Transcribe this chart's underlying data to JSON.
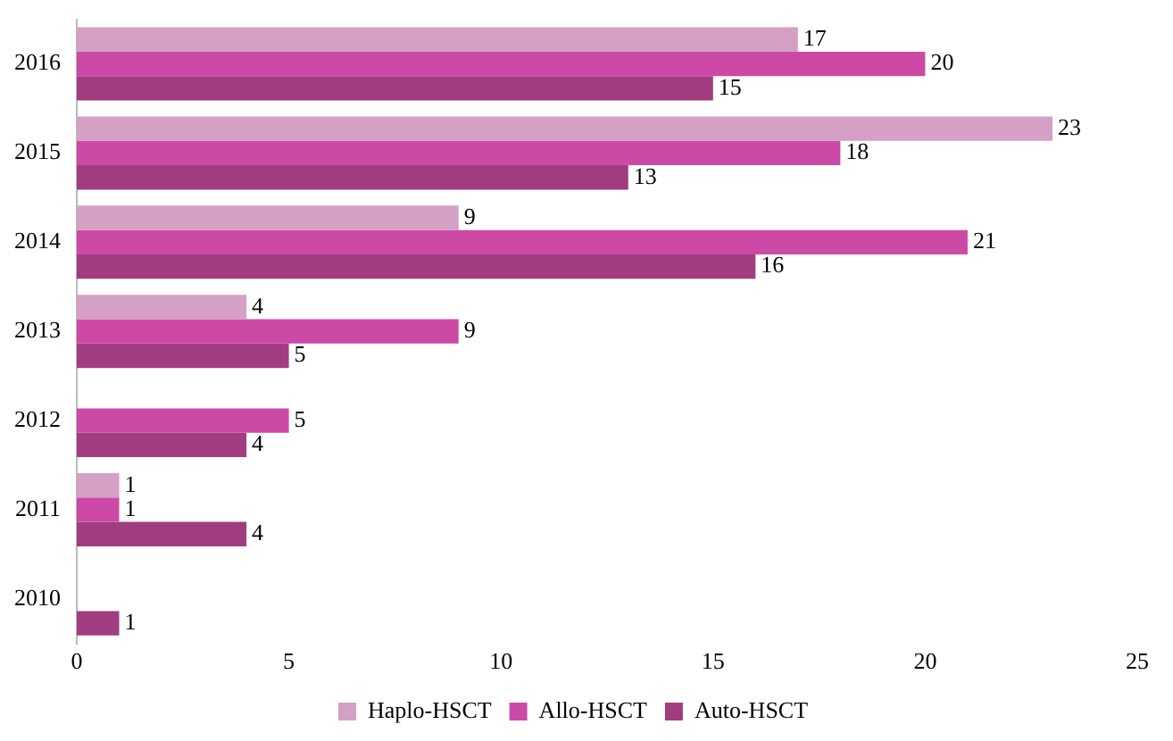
{
  "chart_data": {
    "type": "bar",
    "orientation": "horizontal",
    "categories": [
      "2016",
      "2015",
      "2014",
      "2013",
      "2012",
      "2011",
      "2010"
    ],
    "series": [
      {
        "name": "Haplo-HSCT",
        "color": "#d4a0c4",
        "values": [
          17,
          23,
          9,
          4,
          null,
          1,
          null
        ]
      },
      {
        "name": "Allo-HSCT",
        "color": "#cc4aa6",
        "values": [
          20,
          18,
          21,
          9,
          5,
          1,
          null
        ]
      },
      {
        "name": "Auto-HSCT",
        "color": "#a23c80",
        "values": [
          15,
          13,
          16,
          5,
          4,
          4,
          1
        ]
      }
    ],
    "xlim": [
      0,
      25
    ],
    "xticks": [
      0,
      5,
      10,
      15,
      20,
      25
    ],
    "data_labels": true,
    "legend": "bottom",
    "grid": false
  }
}
